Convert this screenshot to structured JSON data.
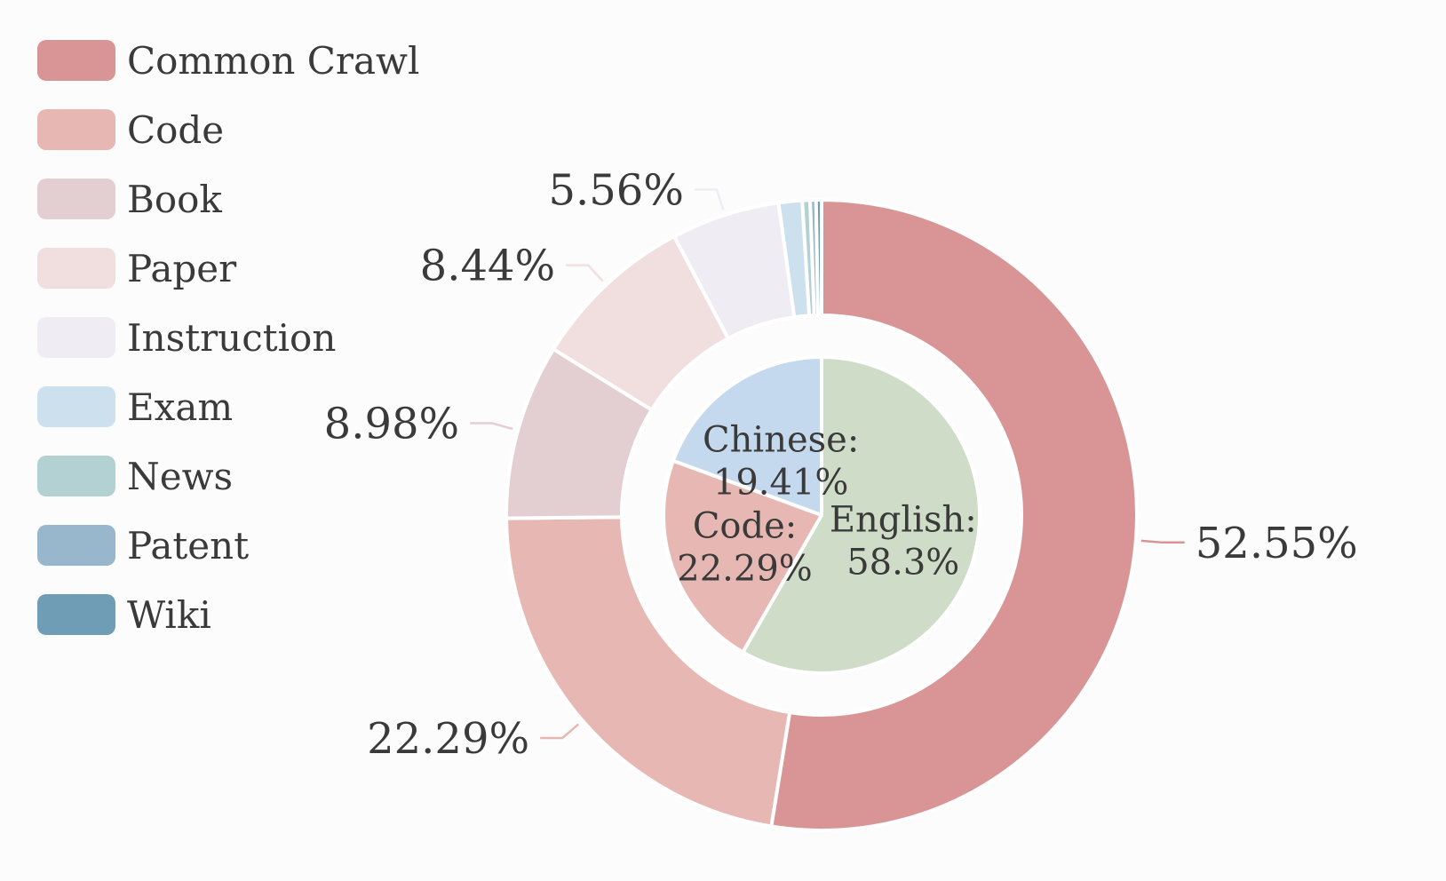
{
  "chart_data": [
    {
      "type": "pie",
      "ring": "outer",
      "categories": [
        "Common Crawl",
        "Code",
        "Book",
        "Paper",
        "Instruction",
        "Exam",
        "News",
        "Patent",
        "Wiki"
      ],
      "values": [
        52.55,
        22.29,
        8.98,
        8.44,
        5.56,
        1.2,
        0.4,
        0.3,
        0.28
      ],
      "data_labels": [
        "52.55%",
        "22.29%",
        "8.98%",
        "8.44%",
        "5.56%",
        "",
        "",
        "",
        ""
      ],
      "colors": [
        "#d99596",
        "#e7b8b3",
        "#e3cfd1",
        "#f1dfdf",
        "#efedf3",
        "#cde0ee",
        "#b3d0d3",
        "#98b7cc",
        "#6f9db6"
      ],
      "legend_position": "top-left"
    },
    {
      "type": "pie",
      "ring": "inner",
      "categories": [
        "English",
        "Code",
        "Chinese"
      ],
      "values": [
        58.3,
        22.29,
        19.41
      ],
      "labels": [
        {
          "name": "English:",
          "value": "58.3%"
        },
        {
          "name": "Code:",
          "value": "22.29%"
        },
        {
          "name": "Chinese:",
          "value": "19.41%"
        }
      ],
      "colors": [
        "#cfdcc7",
        "#e7b8b3",
        "#c5d9ee"
      ]
    }
  ]
}
